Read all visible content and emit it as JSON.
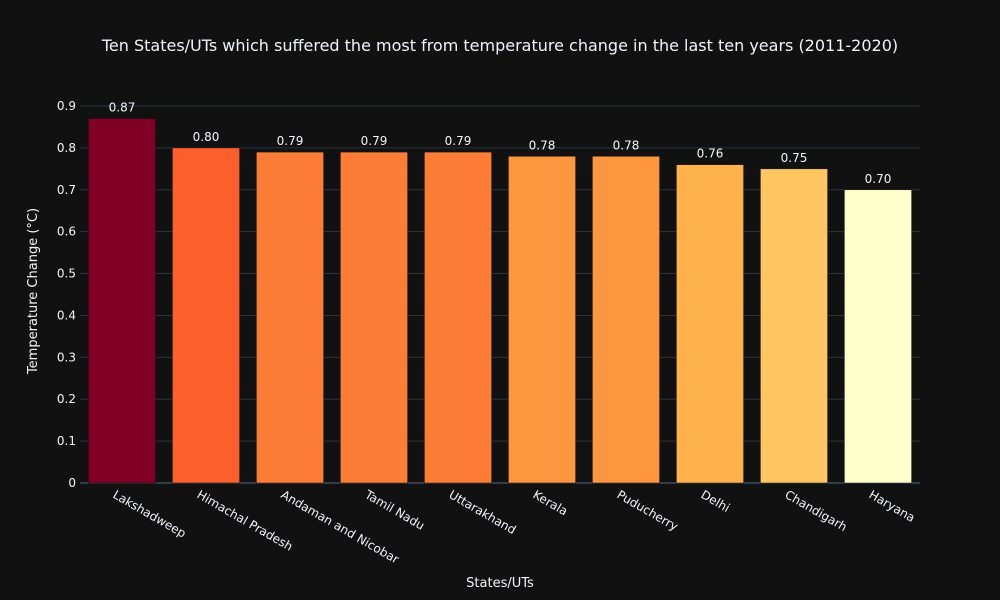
{
  "chart_data": {
    "type": "bar",
    "title": "Ten States/UTs which suffered the most from temperature change in the last ten years (2011-2020)",
    "xlabel": "States/UTs",
    "ylabel": "Temperature Change (°C)",
    "categories": [
      "Lakshadweep",
      "Himachal Pradesh",
      "Andaman and Nicobar",
      "Tamil Nadu",
      "Uttarakhand",
      "Kerala",
      "Puducherry",
      "Delhi",
      "Chandigarh",
      "Haryana"
    ],
    "values": [
      0.87,
      0.8,
      0.79,
      0.79,
      0.79,
      0.78,
      0.78,
      0.76,
      0.75,
      0.7
    ],
    "value_labels": [
      "0.87",
      "0.80",
      "0.79",
      "0.79",
      "0.79",
      "0.78",
      "0.78",
      "0.76",
      "0.75",
      "0.70"
    ],
    "bar_colors": [
      "#800026",
      "#fc5f2c",
      "#fd7d36",
      "#fd7d36",
      "#fd7d36",
      "#fd973f",
      "#fd973f",
      "#feb24c",
      "#fec561",
      "#ffffcc"
    ],
    "ylim": [
      0,
      0.9
    ],
    "yticks": [
      0,
      0.1,
      0.2,
      0.3,
      0.4,
      0.5,
      0.6,
      0.7,
      0.8,
      0.9
    ],
    "ytick_labels": [
      "0",
      "0.1",
      "0.2",
      "0.3",
      "0.4",
      "0.5",
      "0.6",
      "0.7",
      "0.8",
      "0.9"
    ],
    "grid": true,
    "legend": "none",
    "background_color": "#111111",
    "gridline_color": "#283442"
  }
}
